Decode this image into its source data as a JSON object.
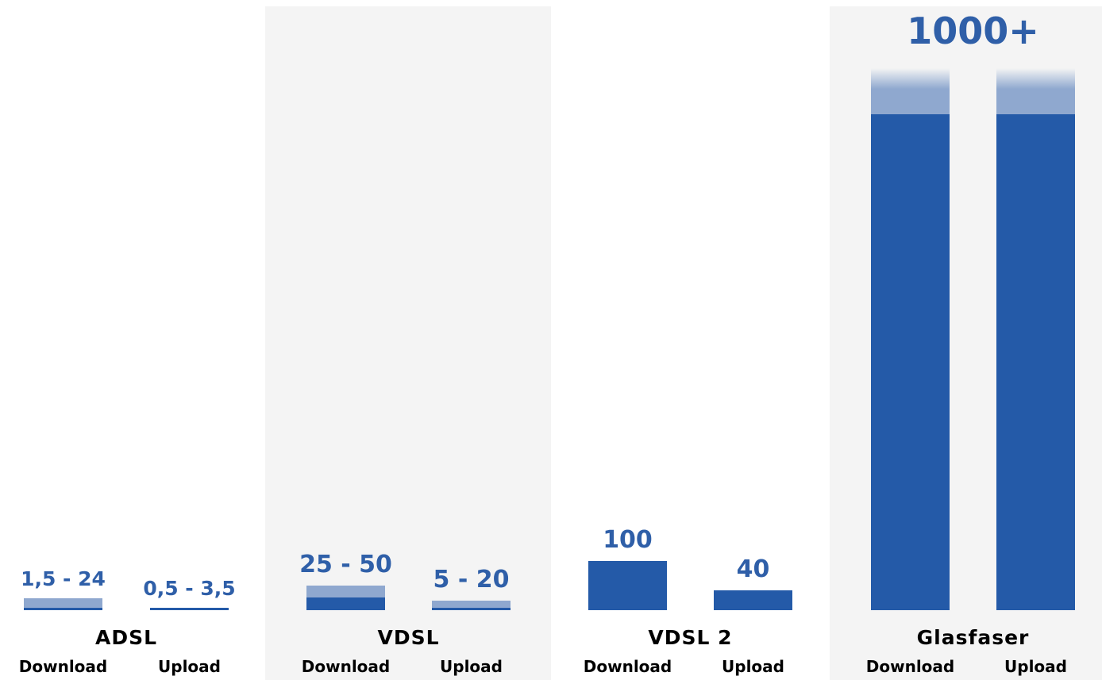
{
  "colors": {
    "bar": "#245AA8",
    "bar_range": "#8FA8CF",
    "group_background": "#F4F4F4",
    "value_text": "#2F5FA8",
    "label_text": "#000000"
  },
  "chart_data": {
    "type": "bar",
    "title": "",
    "xlabel": "",
    "ylabel": "",
    "ylim": [
      0,
      1000
    ],
    "groups": [
      {
        "name": "ADSL",
        "shaded": false,
        "bars": [
          {
            "label": "Download",
            "value_text": "1,5 - 24",
            "min": 1.5,
            "max": 24
          },
          {
            "label": "Upload",
            "value_text": "0,5 - 3,5",
            "min": 0.5,
            "max": 3.5
          }
        ]
      },
      {
        "name": "VDSL",
        "shaded": true,
        "bars": [
          {
            "label": "Download",
            "value_text": "25 - 50",
            "min": 25,
            "max": 50
          },
          {
            "label": "Upload",
            "value_text": "5 - 20",
            "min": 5,
            "max": 20
          }
        ]
      },
      {
        "name": "VDSL 2",
        "shaded": false,
        "bars": [
          {
            "label": "Download",
            "value_text": "100",
            "min": 100,
            "max": 100
          },
          {
            "label": "Upload",
            "value_text": "40",
            "min": 40,
            "max": 40
          }
        ]
      },
      {
        "name": "Glasfaser",
        "shaded": true,
        "open_ended": true,
        "group_value_text": "1000+",
        "bars": [
          {
            "label": "Download",
            "min": 1000,
            "max": 1000
          },
          {
            "label": "Upload",
            "min": 1000,
            "max": 1000
          }
        ]
      }
    ]
  }
}
